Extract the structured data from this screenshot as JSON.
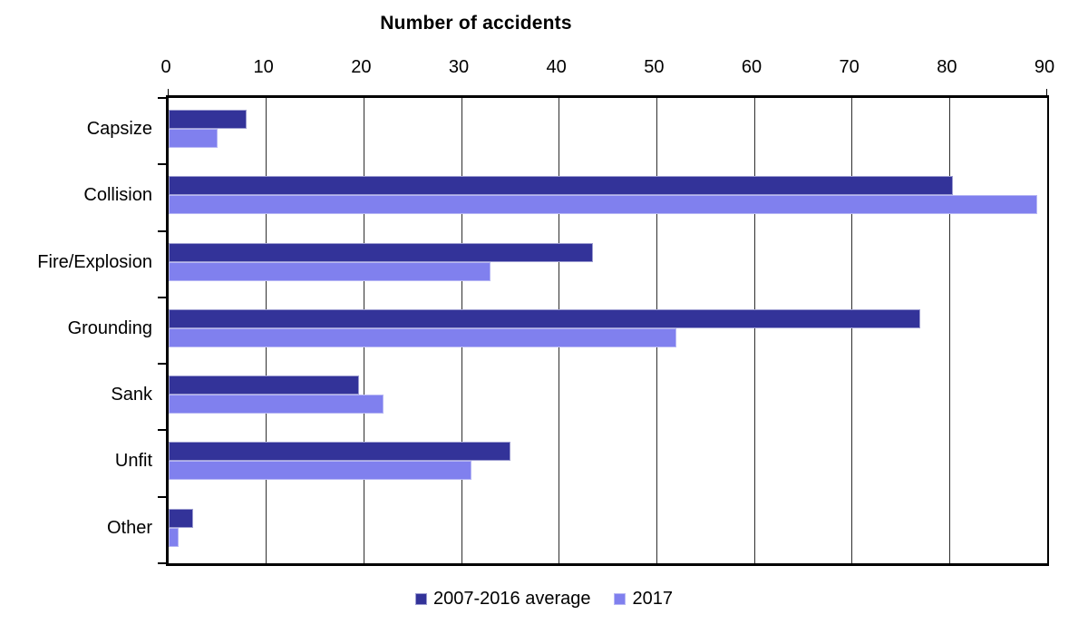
{
  "chart_data": {
    "type": "bar",
    "orientation": "horizontal",
    "title": "Number of accidents",
    "categories": [
      "Capsize",
      "Collision",
      "Fire/Explosion",
      "Grounding",
      "Sank",
      "Unfit",
      "Other"
    ],
    "series": [
      {
        "name": "2007-2016 average",
        "color": "#333399",
        "border_color": "#9c9cd0",
        "values": [
          8,
          80.3,
          43.5,
          77,
          19.5,
          35,
          2.5
        ]
      },
      {
        "name": "2017",
        "color": "#8080ee",
        "border_color": "#b7b7f4",
        "values": [
          5,
          89,
          33,
          52,
          22,
          31,
          1
        ]
      }
    ],
    "x_axis": {
      "min": 0,
      "max": 90,
      "tick_interval": 10,
      "tick_labels": [
        "0",
        "10",
        "20",
        "30",
        "40",
        "50",
        "60",
        "70",
        "80",
        "90"
      ],
      "position": "top"
    },
    "grid": "vertical",
    "legend_position": "bottom",
    "colors": {
      "axis": "#000000",
      "gridline": "#2e2e2e",
      "background": "#ffffff",
      "text": "#000000"
    }
  }
}
